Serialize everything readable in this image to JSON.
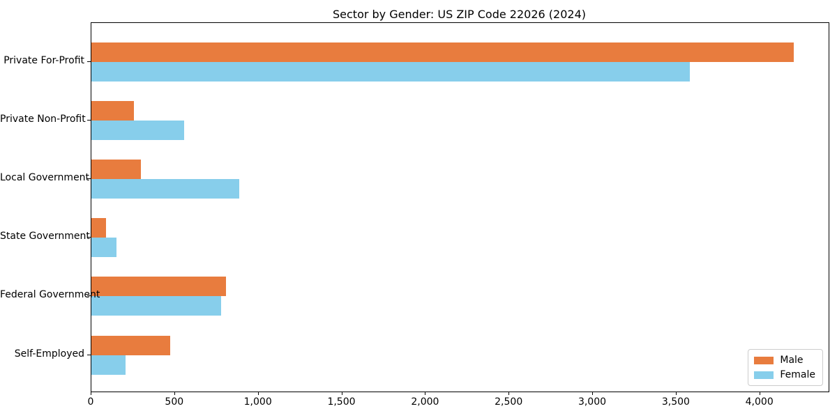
{
  "chart_data": {
    "type": "bar",
    "orientation": "horizontal",
    "title": "Sector by Gender: US ZIP Code 22026 (2024)",
    "xlabel": "",
    "ylabel": "",
    "categories": [
      "Private For-Profit",
      "Private Non-Profit",
      "Local Government",
      "State Government",
      "Federal Government",
      "Self-Employed"
    ],
    "series": [
      {
        "name": "Male",
        "color": "#e87c3e",
        "values": [
          4200,
          255,
          295,
          88,
          805,
          470
        ]
      },
      {
        "name": "Female",
        "color": "#87ceeb",
        "values": [
          3580,
          555,
          885,
          152,
          775,
          205
        ]
      }
    ],
    "xlim": [
      0,
      4410
    ],
    "xticks": [
      0,
      500,
      1000,
      1500,
      2000,
      2500,
      3000,
      3500,
      4000
    ],
    "xtick_labels": [
      "0",
      "500",
      "1,000",
      "1,500",
      "2,000",
      "2,500",
      "3,000",
      "3,500",
      "4,000"
    ],
    "grid": false,
    "legend_position": "lower right",
    "colors": {
      "male": "#e87c3e",
      "female": "#87ceeb",
      "spine": "#000000",
      "legend_border": "#cccccc",
      "background": "#ffffff"
    }
  }
}
